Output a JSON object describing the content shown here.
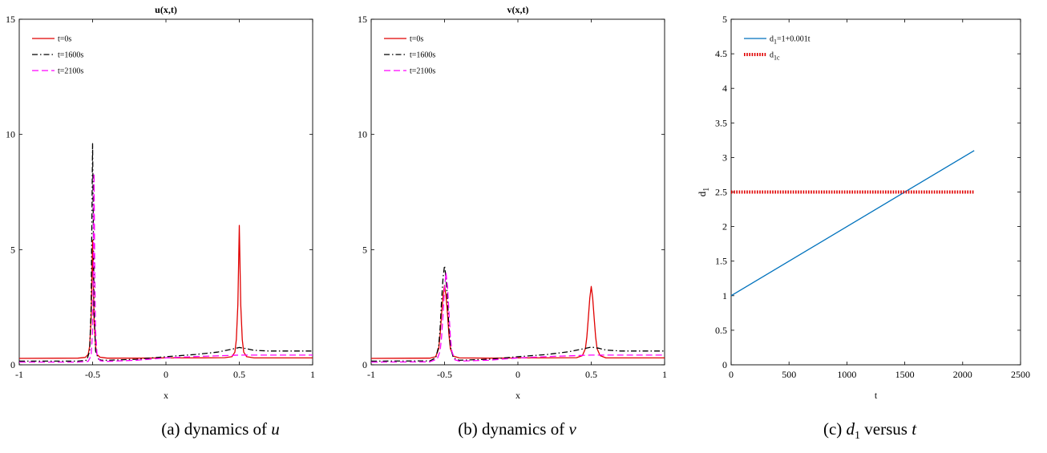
{
  "chart_data": [
    {
      "type": "line",
      "title": "u(x,t)",
      "xlabel": "x",
      "ylabel": "",
      "xlim": [
        -1,
        1
      ],
      "ylim": [
        0,
        15
      ],
      "xticks": [
        "-1",
        "-0.5",
        "0",
        "0.5",
        "1"
      ],
      "yticks": [
        "0",
        "5",
        "10",
        "15"
      ],
      "legend_position": "top-left",
      "series": [
        {
          "name": "t=0s",
          "color": "#e00000",
          "dash": "solid",
          "x": [
            -1,
            -0.6,
            -0.55,
            -0.53,
            -0.52,
            -0.51,
            -0.505,
            -0.5,
            -0.495,
            -0.49,
            -0.48,
            -0.47,
            -0.45,
            -0.4,
            -0.2,
            0,
            0.2,
            0.4,
            0.45,
            0.47,
            0.48,
            0.49,
            0.495,
            0.5,
            0.505,
            0.51,
            0.52,
            0.53,
            0.55,
            0.6,
            1
          ],
          "y": [
            0.28,
            0.29,
            0.32,
            0.45,
            0.8,
            2.0,
            3.6,
            5.4,
            3.6,
            2.0,
            0.8,
            0.45,
            0.33,
            0.29,
            0.29,
            0.3,
            0.3,
            0.31,
            0.35,
            0.55,
            1.1,
            2.6,
            4.3,
            6.05,
            4.3,
            2.6,
            1.1,
            0.55,
            0.35,
            0.3,
            0.3
          ]
        },
        {
          "name": "t=1600s",
          "color": "#000000",
          "dash": "dashdot",
          "x": [
            -1,
            -0.6,
            -0.54,
            -0.52,
            -0.51,
            -0.505,
            -0.5,
            -0.495,
            -0.49,
            -0.48,
            -0.46,
            -0.44,
            -0.4,
            -0.2,
            0,
            0.2,
            0.35,
            0.45,
            0.5,
            0.55,
            0.6,
            0.7,
            0.8,
            1
          ],
          "y": [
            0.16,
            0.16,
            0.2,
            0.6,
            2.5,
            6.2,
            9.6,
            6.0,
            2.4,
            0.6,
            0.25,
            0.2,
            0.2,
            0.24,
            0.35,
            0.45,
            0.55,
            0.68,
            0.75,
            0.7,
            0.63,
            0.6,
            0.6,
            0.6
          ]
        },
        {
          "name": "t=2100s",
          "color": "#ff00ff",
          "dash": "dash",
          "x": [
            -1,
            -0.6,
            -0.53,
            -0.51,
            -0.5,
            -0.495,
            -0.49,
            -0.485,
            -0.48,
            -0.47,
            -0.45,
            -0.42,
            -0.4,
            -0.2,
            0,
            0.2,
            0.3,
            0.4,
            0.5,
            0.6,
            0.8,
            1
          ],
          "y": [
            0.12,
            0.12,
            0.15,
            0.4,
            1.5,
            4.0,
            8.3,
            4.0,
            1.5,
            0.45,
            0.18,
            0.15,
            0.15,
            0.2,
            0.3,
            0.36,
            0.38,
            0.4,
            0.42,
            0.42,
            0.42,
            0.42
          ]
        }
      ]
    },
    {
      "type": "line",
      "title": "v(x,t)",
      "xlabel": "x",
      "ylabel": "",
      "xlim": [
        -1,
        1
      ],
      "ylim": [
        0,
        15
      ],
      "xticks": [
        "-1",
        "-0.5",
        "0",
        "0.5",
        "1"
      ],
      "yticks": [
        "0",
        "5",
        "10",
        "15"
      ],
      "legend_position": "top-left",
      "series": [
        {
          "name": "t=0s",
          "color": "#e00000",
          "dash": "solid",
          "x": [
            -1,
            -0.6,
            -0.56,
            -0.54,
            -0.53,
            -0.52,
            -0.51,
            -0.5,
            -0.49,
            -0.48,
            -0.47,
            -0.46,
            -0.44,
            -0.4,
            -0.2,
            0,
            0.2,
            0.4,
            0.44,
            0.46,
            0.47,
            0.48,
            0.49,
            0.5,
            0.51,
            0.52,
            0.53,
            0.54,
            0.56,
            0.6,
            1
          ],
          "y": [
            0.28,
            0.29,
            0.35,
            0.7,
            1.3,
            2.2,
            3.0,
            3.45,
            3.0,
            2.2,
            1.3,
            0.7,
            0.38,
            0.3,
            0.29,
            0.3,
            0.3,
            0.31,
            0.4,
            0.7,
            1.2,
            2.0,
            2.9,
            3.4,
            2.9,
            2.0,
            1.2,
            0.7,
            0.4,
            0.3,
            0.3
          ]
        },
        {
          "name": "t=1600s",
          "color": "#000000",
          "dash": "dashdot",
          "x": [
            -1,
            -0.6,
            -0.56,
            -0.54,
            -0.53,
            -0.52,
            -0.51,
            -0.5,
            -0.49,
            -0.48,
            -0.47,
            -0.46,
            -0.44,
            -0.4,
            -0.2,
            0,
            0.2,
            0.35,
            0.45,
            0.5,
            0.55,
            0.6,
            0.7,
            0.8,
            1
          ],
          "y": [
            0.16,
            0.17,
            0.3,
            0.8,
            1.6,
            2.8,
            3.8,
            4.3,
            3.8,
            2.8,
            1.6,
            0.8,
            0.3,
            0.2,
            0.24,
            0.35,
            0.45,
            0.57,
            0.7,
            0.77,
            0.72,
            0.64,
            0.6,
            0.6,
            0.6
          ]
        },
        {
          "name": "t=2100s",
          "color": "#ff00ff",
          "dash": "dash",
          "x": [
            -1,
            -0.6,
            -0.55,
            -0.53,
            -0.52,
            -0.51,
            -0.5,
            -0.49,
            -0.48,
            -0.47,
            -0.46,
            -0.45,
            -0.43,
            -0.4,
            -0.2,
            0,
            0.2,
            0.3,
            0.4,
            0.5,
            0.6,
            0.8,
            1
          ],
          "y": [
            0.12,
            0.13,
            0.25,
            0.6,
            1.2,
            2.2,
            3.3,
            4.0,
            3.4,
            2.3,
            1.2,
            0.6,
            0.22,
            0.16,
            0.2,
            0.3,
            0.36,
            0.38,
            0.4,
            0.42,
            0.42,
            0.42,
            0.42
          ]
        }
      ]
    },
    {
      "type": "line",
      "title": "",
      "xlabel": "t",
      "ylabel": "d",
      "ylabel_sub": "1",
      "xlim": [
        0,
        2500
      ],
      "ylim": [
        0,
        5
      ],
      "xticks": [
        "0",
        "500",
        "1000",
        "1500",
        "2000",
        "2500"
      ],
      "yticks": [
        "0",
        "0.5",
        "1",
        "1.5",
        "2",
        "2.5",
        "3",
        "3.5",
        "4",
        "4.5",
        "5"
      ],
      "legend_position": "top-left",
      "series": [
        {
          "name": "d",
          "name_sub": "1",
          "name_tail": "=1+0.001t",
          "color": "#0072bd",
          "dash": "solid",
          "x": [
            0,
            2100
          ],
          "y": [
            1,
            3.1
          ]
        },
        {
          "name": "d",
          "name_sub": "1c",
          "name_tail": "",
          "color": "#e00000",
          "dash": "dotted",
          "x": [
            0,
            2100
          ],
          "y": [
            2.5,
            2.5
          ]
        }
      ]
    }
  ],
  "captions": [
    {
      "pre": "(a) dynamics of ",
      "var": "u",
      "sub": "",
      "mid": "",
      "var2": ""
    },
    {
      "pre": "(b) dynamics of ",
      "var": "v",
      "sub": "",
      "mid": "",
      "var2": ""
    },
    {
      "pre": "(c) ",
      "var": "d",
      "sub": "1",
      "mid": " versus ",
      "var2": "t"
    }
  ]
}
